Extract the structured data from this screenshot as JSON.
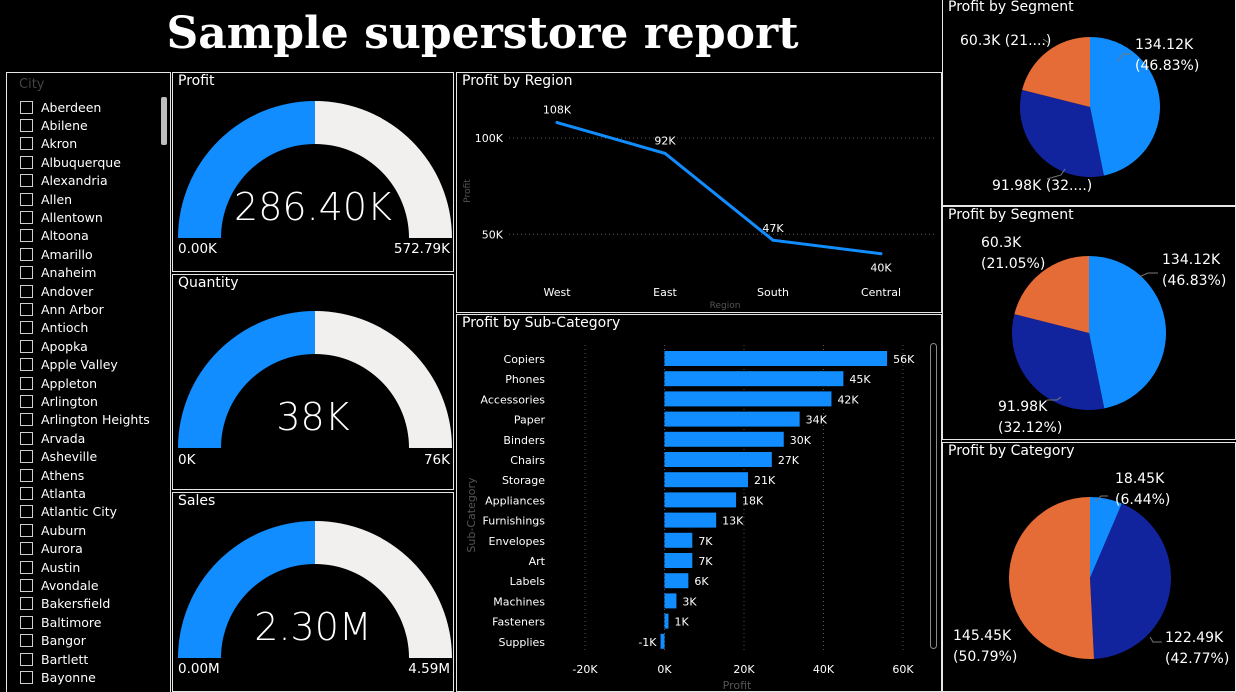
{
  "report_title": "Sample superstore report",
  "slicer": {
    "header": "City",
    "cities": [
      "Aberdeen",
      "Abilene",
      "Akron",
      "Albuquerque",
      "Alexandria",
      "Allen",
      "Allentown",
      "Altoona",
      "Amarillo",
      "Anaheim",
      "Andover",
      "Ann Arbor",
      "Antioch",
      "Apopka",
      "Apple Valley",
      "Appleton",
      "Arlington",
      "Arlington Heights",
      "Arvada",
      "Asheville",
      "Athens",
      "Atlanta",
      "Atlantic City",
      "Auburn",
      "Aurora",
      "Austin",
      "Avondale",
      "Bakersfield",
      "Baltimore",
      "Bangor",
      "Bartlett",
      "Bayonne"
    ]
  },
  "gauges": [
    {
      "title": "Profit",
      "value": "286.40K",
      "min": "0.00K",
      "max": "572.79K",
      "fraction": 0.5
    },
    {
      "title": "Quantity",
      "value": "38K",
      "min": "0K",
      "max": "76K",
      "fraction": 0.5
    },
    {
      "title": "Sales",
      "value": "2.30M",
      "min": "0.00M",
      "max": "4.59M",
      "fraction": 0.5
    }
  ],
  "colors": {
    "gauge_fill": "#118DFF",
    "gauge_track": "#F1F0EE",
    "line": "#118DFF",
    "bar": "#118DFF",
    "pie_light": "#118DFF",
    "pie_dark": "#12239E",
    "pie_orange": "#E66C37"
  },
  "chart_data": [
    {
      "type": "line",
      "title": "Profit by Region",
      "categories": [
        "West",
        "East",
        "South",
        "Central"
      ],
      "values": [
        108,
        92,
        47,
        40
      ],
      "data_labels": [
        "108K",
        "92K",
        "47K",
        "40K"
      ],
      "yticks": [
        "100K",
        "50K"
      ],
      "ytick_values": [
        100,
        50
      ],
      "ylim": [
        30,
        115
      ],
      "xlabel": "Region",
      "ylabel": "Profit"
    },
    {
      "type": "bar",
      "orientation": "horizontal",
      "title": "Profit by Sub-Category",
      "categories": [
        "Copiers",
        "Phones",
        "Accessories",
        "Paper",
        "Binders",
        "Chairs",
        "Storage",
        "Appliances",
        "Furnishings",
        "Envelopes",
        "Art",
        "Labels",
        "Machines",
        "Fasteners",
        "Supplies"
      ],
      "values": [
        56,
        45,
        42,
        34,
        30,
        27,
        21,
        18,
        13,
        7,
        7,
        6,
        3,
        1,
        -1
      ],
      "data_labels": [
        "56K",
        "45K",
        "42K",
        "34K",
        "30K",
        "27K",
        "21K",
        "18K",
        "13K",
        "7K",
        "7K",
        "6K",
        "3K",
        "1K",
        "-1K"
      ],
      "xticks": [
        "-20K",
        "0K",
        "20K",
        "40K",
        "60K"
      ],
      "xtick_values": [
        -20,
        0,
        20,
        40,
        60
      ],
      "xlim": [
        -20,
        60
      ],
      "xlabel": "Profit",
      "ylabel": "Sub-Category"
    },
    {
      "type": "pie",
      "title": "Profit by Segment",
      "slices": [
        {
          "value": 134.12,
          "percent": 46.83,
          "color": "#118DFF"
        },
        {
          "value": 91.98,
          "percent": 32.12,
          "color": "#12239E"
        },
        {
          "value": 60.3,
          "percent": 21.05,
          "color": "#E66C37"
        }
      ],
      "labels": [
        "134.12K\n(46.83%)",
        "91.98K (32....)",
        "60.3K (21....)"
      ]
    },
    {
      "type": "pie",
      "title": "Profit by Segment",
      "slices": [
        {
          "value": 134.12,
          "percent": 46.83,
          "color": "#118DFF"
        },
        {
          "value": 91.98,
          "percent": 32.12,
          "color": "#12239E"
        },
        {
          "value": 60.3,
          "percent": 21.05,
          "color": "#E66C37"
        }
      ],
      "labels": [
        "134.12K\n(46.83%)",
        "91.98K\n(32.12%)",
        "60.3K\n(21.05%)"
      ]
    },
    {
      "type": "pie",
      "title": "Profit by Category",
      "slices": [
        {
          "value": 18.45,
          "percent": 6.44,
          "color": "#118DFF"
        },
        {
          "value": 122.49,
          "percent": 42.77,
          "color": "#12239E"
        },
        {
          "value": 145.45,
          "percent": 50.79,
          "color": "#E66C37"
        }
      ],
      "labels": [
        "18.45K\n(6.44%)",
        "122.49K\n(42.77%)",
        "145.45K\n(50.79%)"
      ]
    }
  ]
}
